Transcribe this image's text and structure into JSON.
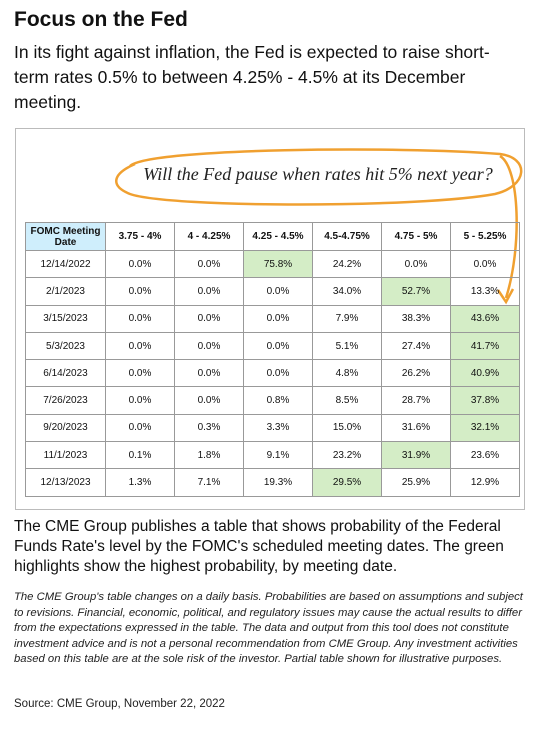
{
  "header": {
    "title": "Focus on the Fed",
    "subtitle": "In its fight against inflation, the Fed is expected to raise short-term rates 0.5% to between 4.25% - 4.5% at its December meeting."
  },
  "annotation": "Will the Fed pause when rates hit 5% next year?",
  "table": {
    "columns": [
      "FOMC Meeting Date",
      "3.75 - 4%",
      "4 - 4.25%",
      "4.25 - 4.5%",
      "4.5-4.75%",
      "4.75 - 5%",
      "5 - 5.25%"
    ],
    "rows": [
      [
        "12/14/2022",
        "0.0%",
        "0.0%",
        "75.8%",
        "24.2%",
        "0.0%",
        "0.0%"
      ],
      [
        "2/1/2023",
        "0.0%",
        "0.0%",
        "0.0%",
        "34.0%",
        "52.7%",
        "13.3%"
      ],
      [
        "3/15/2023",
        "0.0%",
        "0.0%",
        "0.0%",
        "7.9%",
        "38.3%",
        "43.6%"
      ],
      [
        "5/3/2023",
        "0.0%",
        "0.0%",
        "0.0%",
        "5.1%",
        "27.4%",
        "41.7%"
      ],
      [
        "6/14/2023",
        "0.0%",
        "0.0%",
        "0.0%",
        "4.8%",
        "26.2%",
        "40.9%"
      ],
      [
        "7/26/2023",
        "0.0%",
        "0.0%",
        "0.8%",
        "8.5%",
        "28.7%",
        "37.8%"
      ],
      [
        "9/20/2023",
        "0.0%",
        "0.3%",
        "3.3%",
        "15.0%",
        "31.6%",
        "32.1%"
      ],
      [
        "11/1/2023",
        "0.1%",
        "1.8%",
        "9.1%",
        "23.2%",
        "31.9%",
        "23.6%"
      ],
      [
        "12/13/2023",
        "1.3%",
        "7.1%",
        "19.3%",
        "29.5%",
        "25.9%",
        "12.9%"
      ]
    ],
    "highlight": [
      3,
      5,
      6,
      6,
      6,
      6,
      6,
      5,
      4
    ],
    "highlight_color": "#d4edc6",
    "date_header_color": "#cfeefc"
  },
  "body": "The CME Group publishes a table that shows probability of the Federal Funds Rate's level by the FOMC's scheduled meeting dates. The green highlights show the highest probability, by meeting date.",
  "disclaimer": "The CME Group's table changes on a daily basis. Probabilities are based on assumptions and subject to revisions. Financial, economic, political, and regulatory issues may cause the actual results to differ from the expectations expressed in the table. The data and output from this tool does not constitute investment advice and is not a personal recommendation from CME Group.  Any investment activities based on this table are at the sole risk of the investor. Partial table shown for illustrative purposes.",
  "source": "Source: CME Group, November 22, 2022"
}
